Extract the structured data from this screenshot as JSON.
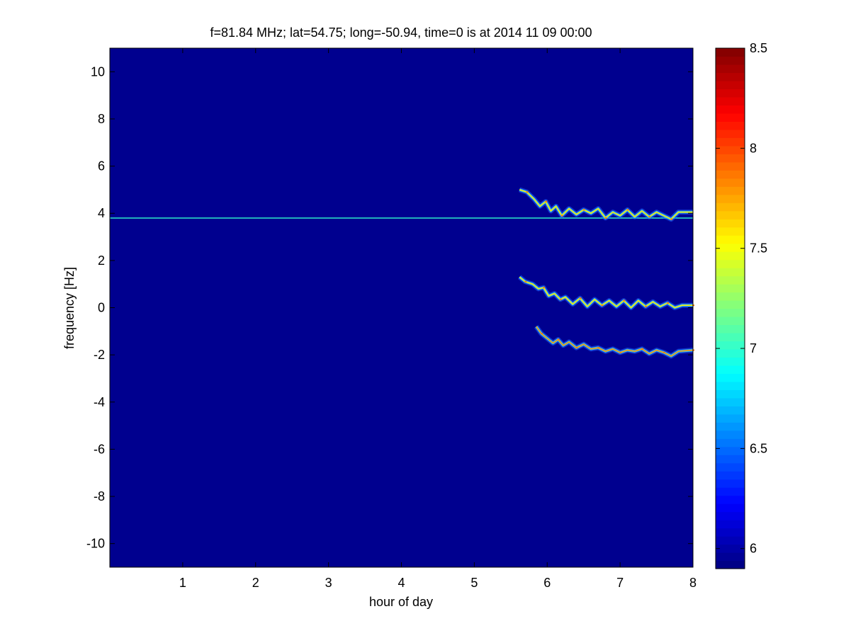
{
  "chart_data": {
    "type": "heatmap",
    "title": "f=81.84 MHz;  lat=54.75; long=-50.94, time=0 is at 2014 11 09 00:00",
    "xlabel": "hour of day",
    "ylabel": "frequency [Hz]",
    "xlim": [
      0,
      8
    ],
    "ylim": [
      -11,
      11
    ],
    "xticks": [
      "1",
      "2",
      "3",
      "4",
      "5",
      "6",
      "7",
      "8"
    ],
    "xtick_values": [
      1,
      2,
      3,
      4,
      5,
      6,
      7,
      8
    ],
    "yticks": [
      "10",
      "8",
      "6",
      "4",
      "2",
      "0",
      "-2",
      "-4",
      "-6",
      "-8",
      "-10"
    ],
    "ytick_values": [
      10,
      8,
      6,
      4,
      2,
      0,
      -2,
      -4,
      -6,
      -8,
      -10
    ],
    "colorbar": {
      "colormap": "jet",
      "clim": [
        5.9,
        8.5
      ],
      "ticks": [
        "8.5",
        "8",
        "7.5",
        "7",
        "6.5",
        "6"
      ],
      "tick_values": [
        8.5,
        8,
        7.5,
        7,
        6.5,
        6
      ]
    },
    "background_color": "#00008f",
    "series": [
      {
        "style": "constant-line",
        "y": 3.8,
        "x_range": [
          0,
          8
        ],
        "level": 7.0
      },
      {
        "style": "wiggly-trace",
        "x": [
          5.62,
          5.72,
          5.82,
          5.9,
          5.98,
          6.05,
          6.12,
          6.2,
          6.3,
          6.4,
          6.5,
          6.6,
          6.7,
          6.8,
          6.9,
          7.0,
          7.1,
          7.2,
          7.3,
          7.4,
          7.5,
          7.6,
          7.7,
          7.8,
          8.0
        ],
        "y": [
          5.0,
          4.9,
          4.6,
          4.3,
          4.5,
          4.1,
          4.3,
          3.9,
          4.2,
          3.95,
          4.15,
          4.0,
          4.2,
          3.8,
          4.05,
          3.9,
          4.15,
          3.85,
          4.1,
          3.85,
          4.05,
          3.9,
          3.75,
          4.05,
          4.05
        ],
        "level": 7.6
      },
      {
        "style": "wiggly-trace",
        "x": [
          5.62,
          5.7,
          5.8,
          5.88,
          5.95,
          6.02,
          6.1,
          6.18,
          6.25,
          6.35,
          6.45,
          6.55,
          6.65,
          6.75,
          6.85,
          6.95,
          7.05,
          7.15,
          7.25,
          7.35,
          7.45,
          7.55,
          7.65,
          7.75,
          7.85,
          8.0
        ],
        "y": [
          1.3,
          1.1,
          1.0,
          0.8,
          0.85,
          0.5,
          0.6,
          0.35,
          0.45,
          0.15,
          0.4,
          0.05,
          0.35,
          0.1,
          0.3,
          0.05,
          0.3,
          0.0,
          0.3,
          0.05,
          0.25,
          0.05,
          0.2,
          0.0,
          0.1,
          0.1
        ],
        "level": 7.6
      },
      {
        "style": "wiggly-trace",
        "x": [
          5.85,
          5.92,
          6.0,
          6.08,
          6.15,
          6.22,
          6.3,
          6.4,
          6.5,
          6.6,
          6.7,
          6.8,
          6.9,
          7.0,
          7.1,
          7.2,
          7.3,
          7.4,
          7.5,
          7.6,
          7.7,
          7.8,
          8.0
        ],
        "y": [
          -0.8,
          -1.1,
          -1.3,
          -1.5,
          -1.35,
          -1.6,
          -1.45,
          -1.7,
          -1.55,
          -1.75,
          -1.7,
          -1.85,
          -1.75,
          -1.9,
          -1.8,
          -1.85,
          -1.75,
          -1.95,
          -1.8,
          -1.9,
          -2.05,
          -1.85,
          -1.8
        ],
        "level": 7.8
      }
    ]
  }
}
